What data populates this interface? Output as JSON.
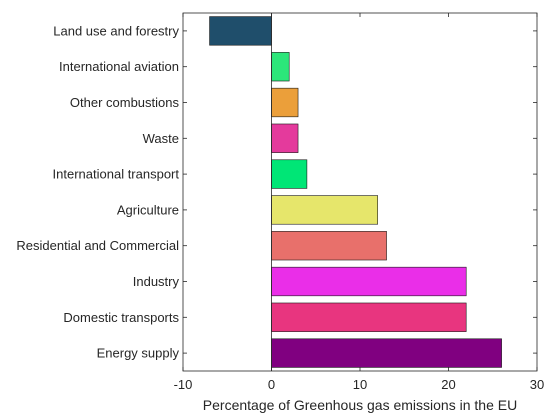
{
  "chart_data": {
    "type": "bar",
    "orientation": "horizontal",
    "categories": [
      "Land use and forestry",
      "International aviation",
      "Other combustions",
      "Waste",
      "International transport",
      "Agriculture",
      "Residential and Commercial",
      "Industry",
      "Domestic transports",
      "Energy supply"
    ],
    "values": [
      -7,
      2,
      3,
      3,
      4,
      12,
      13,
      22,
      22,
      26
    ],
    "colors": [
      "#1f4e6b",
      "#2ce67a",
      "#eb9f3a",
      "#e43a9c",
      "#00e676",
      "#e6e66b",
      "#e8706b",
      "#ea2ee8",
      "#e8357f",
      "#800080"
    ],
    "title": "",
    "xlabel": "Percentage of Greenhous gas emissions in the EU",
    "ylabel": "",
    "xlim": [
      -10,
      30
    ],
    "xticks": [
      -10,
      0,
      10,
      20,
      30
    ],
    "xtick_labels": [
      "-10",
      "0",
      "10",
      "20",
      "30"
    ],
    "grid": false,
    "legend": "none"
  }
}
